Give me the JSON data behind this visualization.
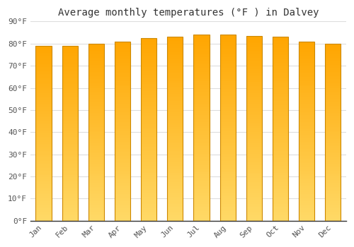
{
  "title": "Average monthly temperatures (°F ) in Dalvey",
  "months": [
    "Jan",
    "Feb",
    "Mar",
    "Apr",
    "May",
    "Jun",
    "Jul",
    "Aug",
    "Sep",
    "Oct",
    "Nov",
    "Dec"
  ],
  "values": [
    79,
    79,
    80,
    81,
    82.5,
    83,
    84,
    84,
    83.5,
    83,
    81,
    80
  ],
  "ylim": [
    0,
    90
  ],
  "yticks": [
    0,
    10,
    20,
    30,
    40,
    50,
    60,
    70,
    80,
    90
  ],
  "ytick_labels": [
    "0°F",
    "10°F",
    "20°F",
    "30°F",
    "40°F",
    "50°F",
    "60°F",
    "70°F",
    "80°F",
    "90°F"
  ],
  "bar_color_top": "#FFA500",
  "bar_color_bottom": "#FFD966",
  "bar_edge_color": "#CC8800",
  "background_color": "#FFFFFF",
  "grid_color": "#DDDDDD",
  "title_fontsize": 10,
  "tick_fontsize": 8,
  "font_family": "monospace",
  "bar_width": 0.6
}
